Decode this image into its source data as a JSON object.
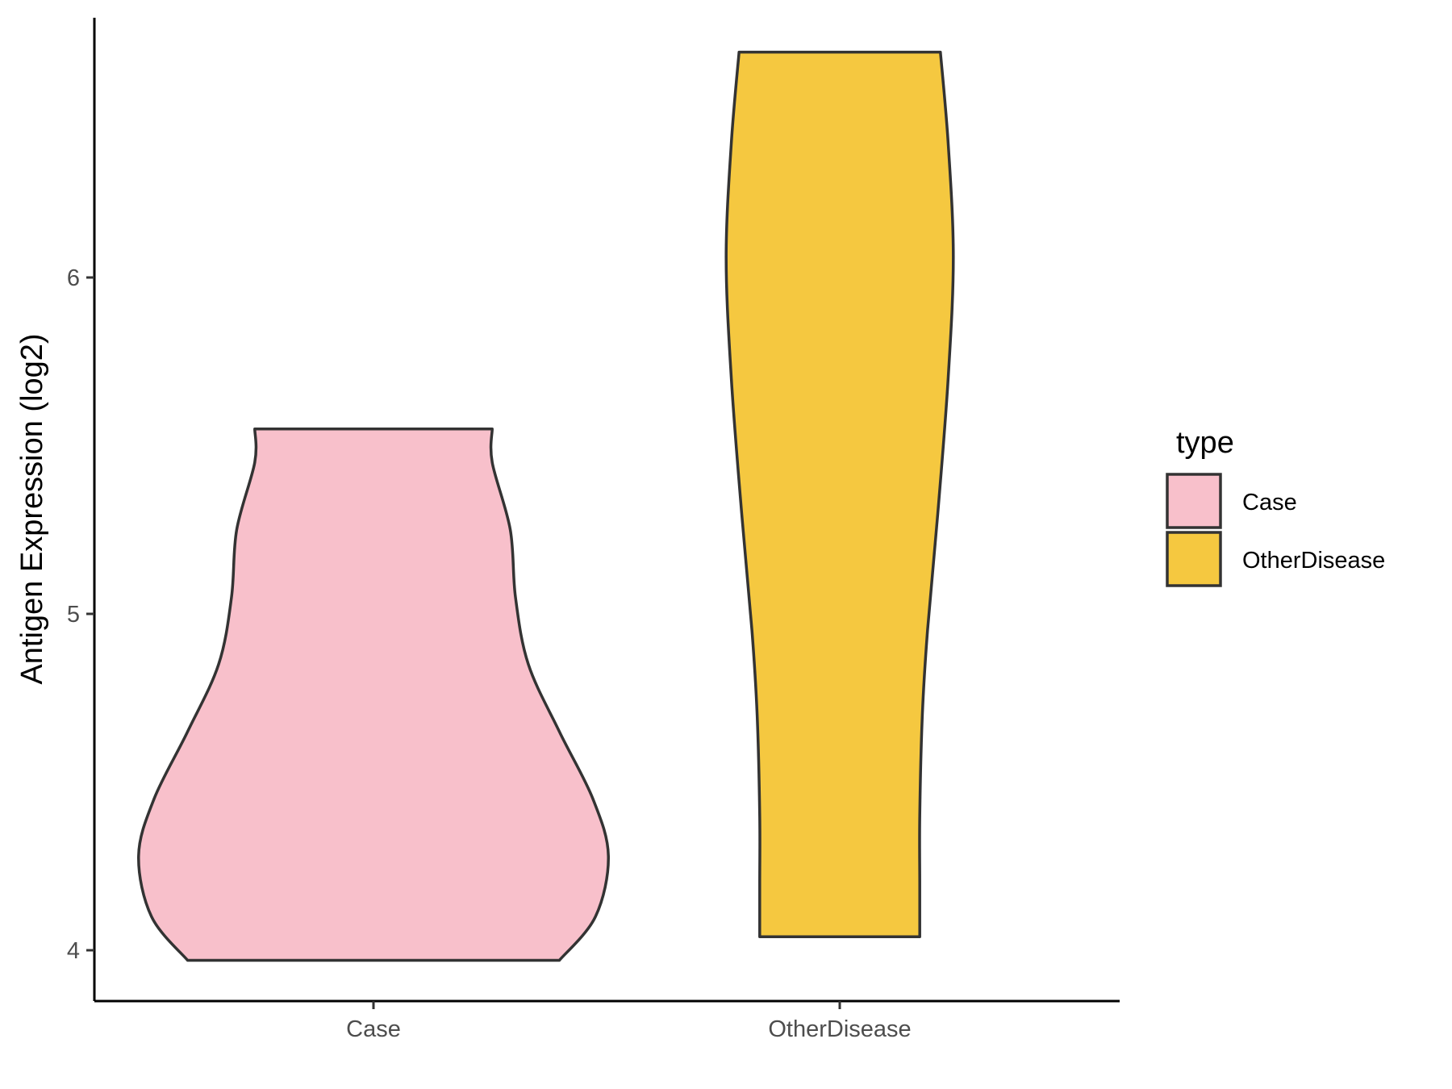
{
  "chart_data": {
    "type": "violin",
    "ylabel": "Antigen Expression (log2)",
    "xlabel": "",
    "ylim": [
      3.85,
      6.75
    ],
    "yticks": [
      4,
      5,
      6
    ],
    "categories": [
      "Case",
      "OtherDisease"
    ],
    "grid": false,
    "legend": {
      "title": "type",
      "placement": "right",
      "entries": [
        {
          "label": "Case",
          "color": "#F8C0CB"
        },
        {
          "label": "OtherDisease",
          "color": "#F5C840"
        }
      ]
    },
    "series": [
      {
        "category": "Case",
        "color": "#F8C0CB",
        "min": 3.97,
        "max": 5.55,
        "density": [
          [
            3.97,
            0.72
          ],
          [
            4.1,
            0.86
          ],
          [
            4.28,
            0.91
          ],
          [
            4.45,
            0.85
          ],
          [
            4.65,
            0.72
          ],
          [
            4.85,
            0.6
          ],
          [
            5.05,
            0.55
          ],
          [
            5.25,
            0.53
          ],
          [
            5.45,
            0.46
          ],
          [
            5.55,
            0.46
          ]
        ]
      },
      {
        "category": "OtherDisease",
        "color": "#F5C840",
        "min": 4.04,
        "max": 6.67,
        "density": [
          [
            4.04,
            0.31
          ],
          [
            4.2,
            0.31
          ],
          [
            4.4,
            0.31
          ],
          [
            4.7,
            0.32
          ],
          [
            4.95,
            0.34
          ],
          [
            5.3,
            0.38
          ],
          [
            5.7,
            0.42
          ],
          [
            6.06,
            0.44
          ],
          [
            6.4,
            0.42
          ],
          [
            6.67,
            0.39
          ]
        ]
      }
    ]
  }
}
